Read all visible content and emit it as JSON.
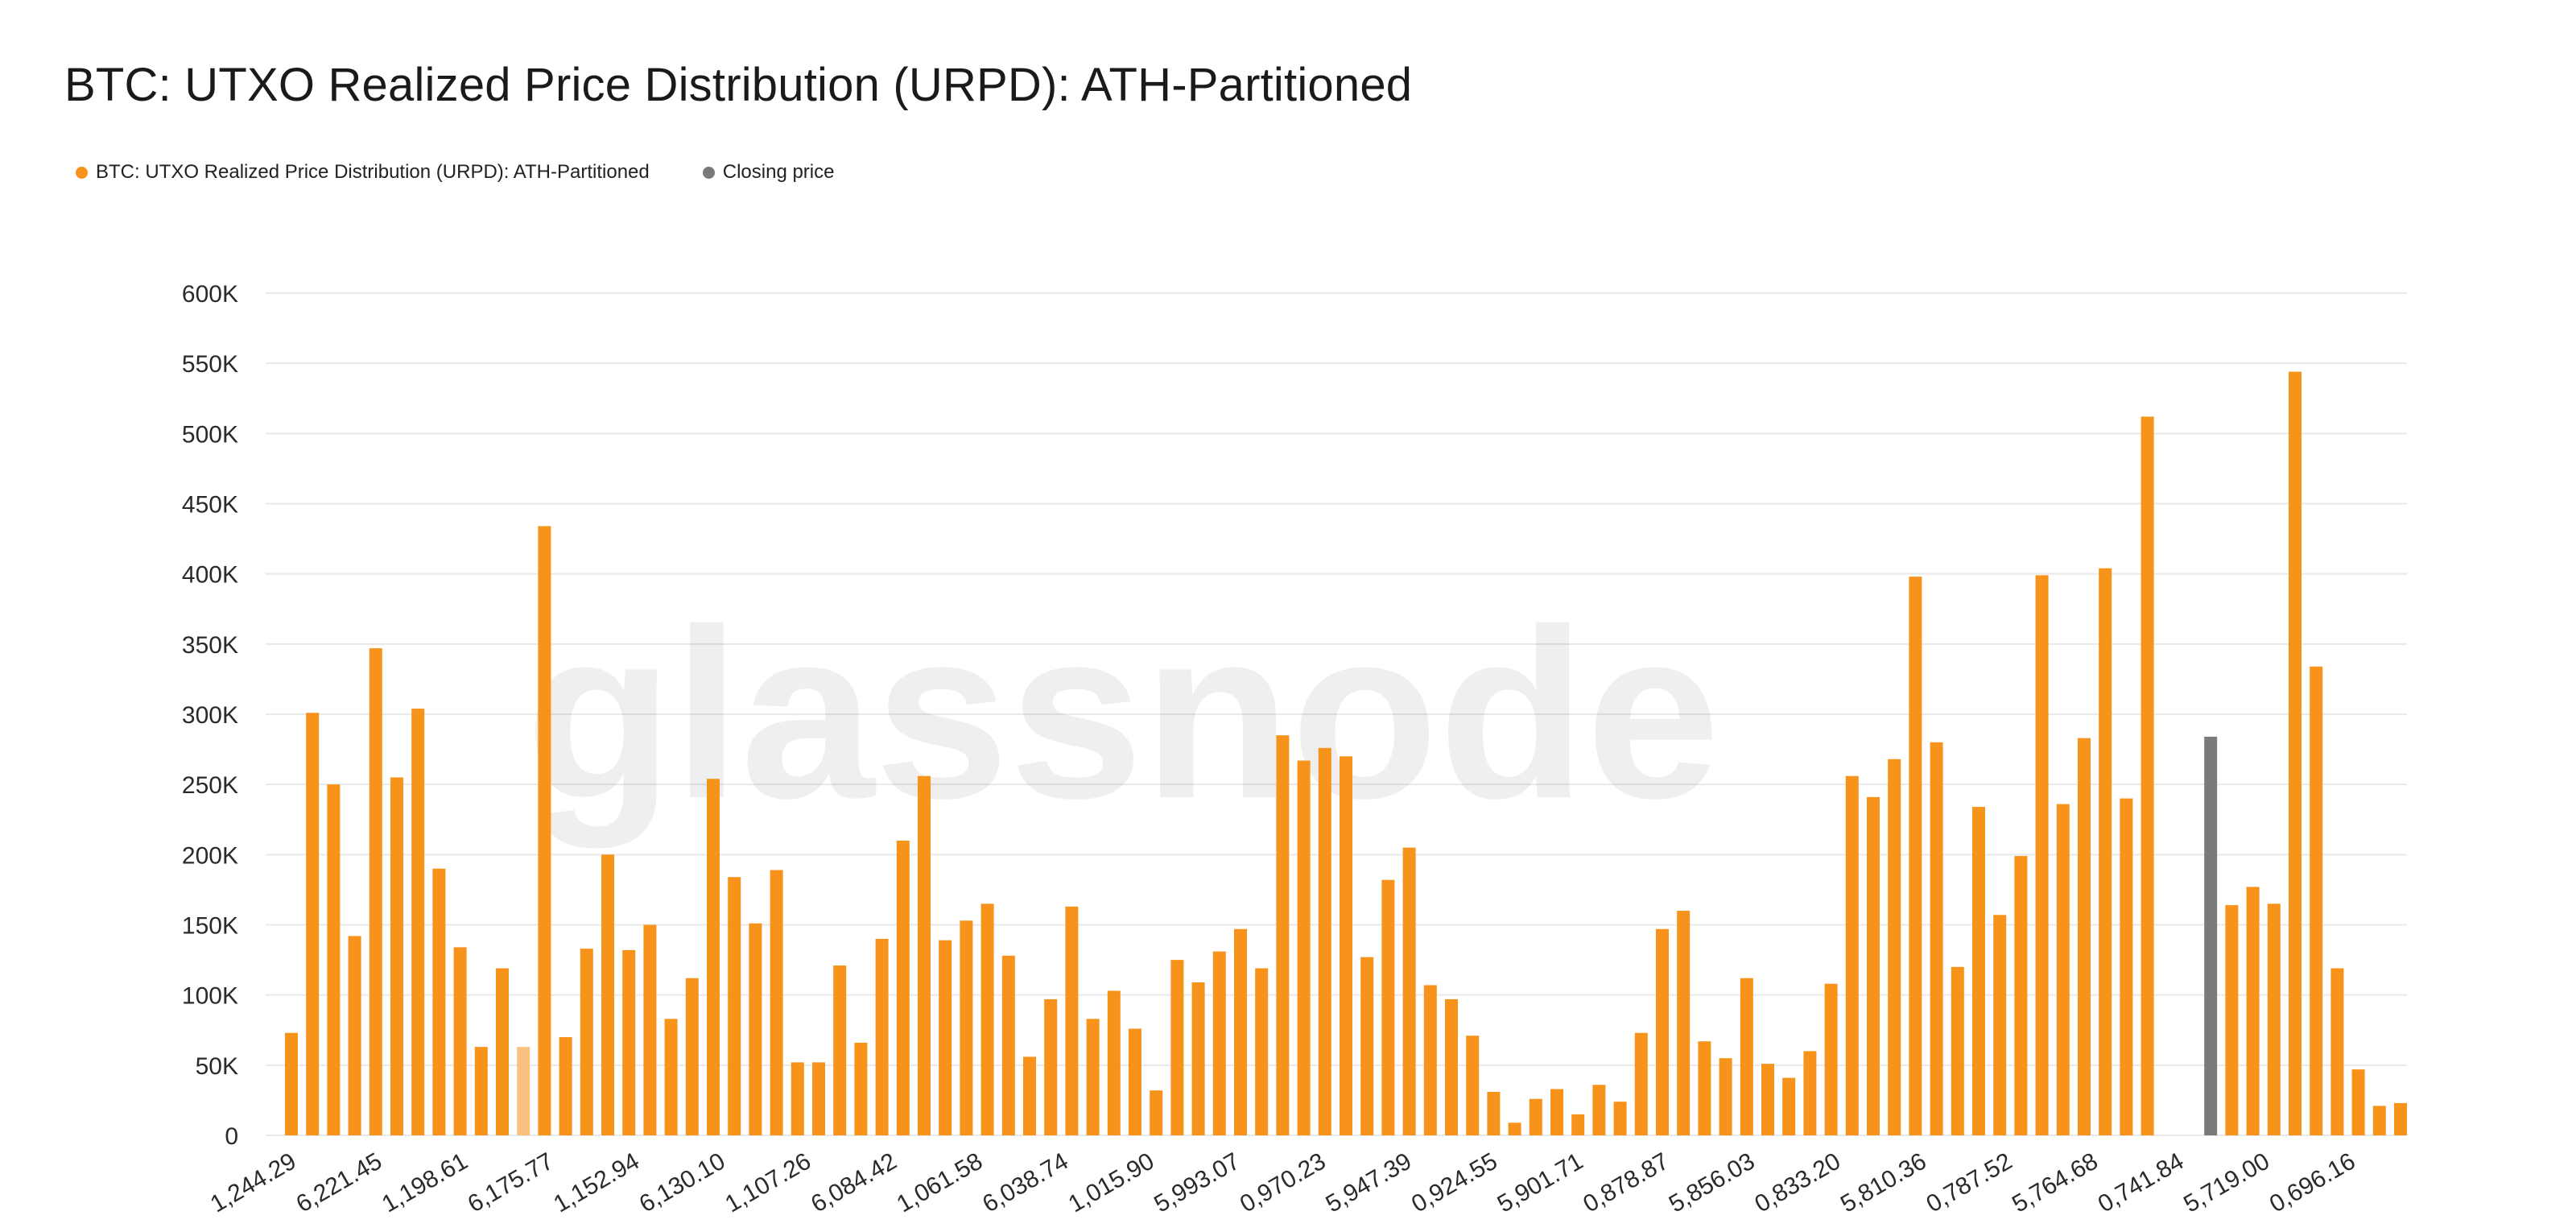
{
  "page": {
    "title": "BTC: UTXO Realized Price Distribution (URPD): ATH-Partitioned",
    "watermark": "glassnode"
  },
  "legend": [
    {
      "label": "BTC: UTXO Realized Price Distribution (URPD): ATH-Partitioned",
      "color": "#F7931A"
    },
    {
      "label": "Closing price",
      "color": "#7A7A7A"
    }
  ],
  "chart_data": {
    "type": "bar",
    "title": "BTC: UTXO Realized Price Distribution (URPD): ATH-Partitioned",
    "xlabel": "",
    "ylabel": "",
    "ylim": [
      0,
      600000
    ],
    "y_ticks": [
      "0",
      "50K",
      "100K",
      "150K",
      "200K",
      "250K",
      "300K",
      "350K",
      "400K",
      "450K",
      "500K",
      "550K",
      "600K"
    ],
    "x_tick_labels": [
      {
        "index": 0,
        "label": "1,244.29"
      },
      {
        "index": 2,
        "label": "6,221.45"
      },
      {
        "index": 4,
        "label": "1,198.61"
      },
      {
        "index": 6,
        "label": "6,175.77"
      },
      {
        "index": 8,
        "label": "1,152.94"
      },
      {
        "index": 10,
        "label": "6,130.10"
      },
      {
        "index": 12,
        "label": "1,107.26"
      },
      {
        "index": 14,
        "label": "6,084.42"
      },
      {
        "index": 16,
        "label": "1,061.58"
      },
      {
        "index": 18,
        "label": "6,038.74"
      },
      {
        "index": 20,
        "label": "1,015.90"
      },
      {
        "index": 22,
        "label": "5,993.07"
      },
      {
        "index": 24,
        "label": "0,970.23"
      },
      {
        "index": 26,
        "label": "5,947.39"
      },
      {
        "index": 28,
        "label": "0,924.55"
      },
      {
        "index": 30,
        "label": "5,901.71"
      },
      {
        "index": 32,
        "label": "0,878.87"
      },
      {
        "index": 34,
        "label": "5,856.03"
      },
      {
        "index": 36,
        "label": "0,833.20"
      },
      {
        "index": 38,
        "label": "5,810.36"
      },
      {
        "index": 40,
        "label": "0,787.52"
      },
      {
        "index": 42,
        "label": "5,764.68"
      },
      {
        "index": 44,
        "label": "0,741.84"
      },
      {
        "index": 46,
        "label": "5,719.00"
      },
      {
        "index": 48,
        "label": "0,696.16"
      }
    ],
    "grid": true,
    "closing_price_bar_index": 91,
    "highlight_bar_index": 11,
    "series": [
      {
        "name": "BTC: UTXO Realized Price Distribution (URPD): ATH-Partitioned",
        "color": "#F7931A",
        "values": [
          73000,
          301000,
          250000,
          142000,
          347000,
          255000,
          304000,
          190000,
          134000,
          63000,
          119000,
          63000,
          434000,
          70000,
          133000,
          200000,
          132000,
          150000,
          83000,
          112000,
          254000,
          184000,
          151000,
          189000,
          52000,
          52000,
          121000,
          66000,
          140000,
          210000,
          256000,
          139000,
          153000,
          165000,
          128000,
          56000,
          97000,
          163000,
          83000,
          103000,
          76000,
          32000,
          125000,
          109000,
          131000,
          147000,
          119000,
          285000,
          267000,
          276000,
          270000,
          127000,
          182000,
          205000,
          107000,
          97000,
          71000,
          31000,
          9000,
          26000,
          33000,
          15000,
          36000,
          24000,
          73000,
          147000,
          160000,
          67000,
          55000,
          112000,
          51000,
          41000,
          60000,
          108000,
          256000,
          241000,
          268000,
          398000,
          280000,
          120000,
          234000,
          157000,
          199000,
          399000,
          236000,
          283000,
          404000,
          240000,
          512000,
          0,
          0,
          284000,
          164000,
          177000,
          165000,
          544000,
          334000,
          119000,
          47000,
          21000,
          23000
        ]
      }
    ]
  }
}
